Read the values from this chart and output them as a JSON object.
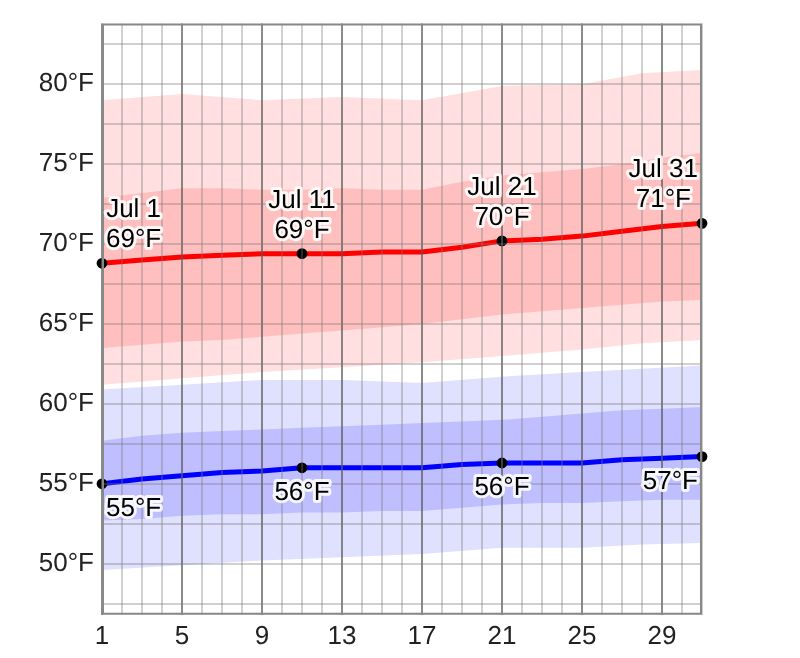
{
  "chart_data": {
    "type": "line",
    "xlim": [
      1,
      31
    ],
    "ylim": [
      46.8,
      83.8
    ],
    "xticks": [
      1,
      {
        "value": 2,
        "label": null
      },
      {
        "value": 3,
        "label": null
      },
      {
        "value": 4,
        "label": null
      },
      5,
      {
        "value": 6,
        "label": null
      },
      {
        "value": 7,
        "label": null
      },
      {
        "value": 8,
        "label": null
      },
      9,
      {
        "value": 10,
        "label": null
      },
      {
        "value": 11,
        "label": null
      },
      {
        "value": 12,
        "label": null
      },
      13,
      {
        "value": 14,
        "label": null
      },
      {
        "value": 15,
        "label": null
      },
      {
        "value": 16,
        "label": null
      },
      17,
      {
        "value": 18,
        "label": null
      },
      {
        "value": 19,
        "label": null
      },
      {
        "value": 20,
        "label": null
      },
      21,
      {
        "value": 22,
        "label": null
      },
      {
        "value": 23,
        "label": null
      },
      {
        "value": 24,
        "label": null
      },
      25,
      {
        "value": 26,
        "label": null
      },
      {
        "value": 27,
        "label": null
      },
      {
        "value": 28,
        "label": null
      },
      29,
      {
        "value": 30,
        "label": null
      },
      {
        "value": 31,
        "label": null
      }
    ],
    "yticks": [
      {
        "value": 47.5,
        "label": null
      },
      {
        "value": 50,
        "label": "50°F"
      },
      {
        "value": 52.5,
        "label": null
      },
      {
        "value": 55,
        "label": "55°F"
      },
      {
        "value": 57.5,
        "label": null
      },
      {
        "value": 60,
        "label": "60°F"
      },
      {
        "value": 62.5,
        "label": null
      },
      {
        "value": 65,
        "label": "65°F"
      },
      {
        "value": 67.5,
        "label": null
      },
      {
        "value": 70,
        "label": "70°F"
      },
      {
        "value": 72.5,
        "label": null
      },
      {
        "value": 75,
        "label": "75°F"
      },
      {
        "value": 77.5,
        "label": null
      },
      {
        "value": 80,
        "label": "80°F"
      },
      {
        "value": 82.5,
        "label": null
      }
    ],
    "grid": true,
    "legend": false,
    "series": [
      {
        "type": "line",
        "color": "#ffdfdf",
        "x": [
          1,
          5,
          9,
          13,
          17,
          21,
          25,
          28,
          31
        ],
        "values": [
          null,
          null,
          null,
          null,
          null,
          null,
          null,
          null,
          null
        ],
        "upper": [
          79.0,
          79.4,
          79.0,
          79.2,
          79.0,
          79.9,
          80.0,
          80.7,
          80.9
        ],
        "lower": [
          61.2,
          61.6,
          62.0,
          62.3,
          62.6,
          63.0,
          63.4,
          63.8,
          64.0
        ]
      },
      {
        "type": "line",
        "color": "#e0e0ff",
        "x": [
          1,
          5,
          9,
          13,
          17,
          21,
          25,
          28,
          31
        ],
        "values": [
          null,
          null,
          null,
          null,
          null,
          null,
          null,
          null,
          null
        ],
        "upper": [
          60.9,
          61.2,
          61.5,
          61.5,
          61.3,
          61.7,
          62.0,
          62.2,
          62.4
        ],
        "lower": [
          49.6,
          49.9,
          50.2,
          50.4,
          50.6,
          51.0,
          51.0,
          51.2,
          51.3
        ]
      },
      {
        "type": "line",
        "color": "#ff0000",
        "x": [
          1,
          3,
          5,
          7,
          9,
          11,
          13,
          15,
          17,
          19,
          21,
          23,
          25,
          27,
          29,
          31
        ],
        "values": [
          68.8,
          69.0,
          69.2,
          69.3,
          69.4,
          69.4,
          69.4,
          69.5,
          69.5,
          69.8,
          70.2,
          70.3,
          70.5,
          70.8,
          71.1,
          71.3
        ],
        "lower": [
          63.5,
          63.7,
          63.9,
          64.0,
          64.2,
          64.4,
          64.6,
          64.8,
          65.0,
          65.3,
          65.6,
          65.8,
          66.0,
          66.2,
          66.4,
          66.5
        ],
        "upper": [
          72.9,
          73.2,
          73.5,
          73.5,
          73.4,
          73.4,
          73.5,
          73.4,
          73.4,
          73.9,
          74.3,
          74.5,
          74.7,
          75.0,
          75.4,
          75.7
        ]
      },
      {
        "type": "line",
        "color": "#0000ff",
        "x": [
          1,
          3,
          5,
          7,
          9,
          11,
          13,
          15,
          17,
          19,
          21,
          23,
          25,
          27,
          29,
          31
        ],
        "values": [
          55.0,
          55.3,
          55.5,
          55.7,
          55.8,
          56.0,
          56.0,
          56.0,
          56.0,
          56.2,
          56.3,
          56.3,
          56.3,
          56.5,
          56.6,
          56.7
        ],
        "lower": [
          52.7,
          52.8,
          53.0,
          53.1,
          53.1,
          53.2,
          53.2,
          53.3,
          53.3,
          53.5,
          53.7,
          53.8,
          53.8,
          53.9,
          54.0,
          54.0
        ],
        "upper": [
          57.7,
          58.0,
          58.2,
          58.3,
          58.4,
          58.5,
          58.6,
          58.7,
          58.8,
          58.9,
          59.0,
          59.2,
          59.4,
          59.6,
          59.7,
          59.8
        ]
      },
      {
        "type": "scatter",
        "color": "#000000",
        "x": [
          1,
          11,
          21,
          31
        ],
        "values": [
          68.8,
          69.4,
          70.2,
          71.3
        ]
      },
      {
        "type": "scatter",
        "color": "#000000",
        "x": [
          1,
          11,
          21,
          31
        ],
        "values": [
          55.0,
          56.0,
          56.3,
          56.7
        ]
      }
    ],
    "annotations": [
      {
        "text": "Jul 1\n69°F",
        "x": 1,
        "y": 68.8
      },
      {
        "text": "Jul 11\n69°F",
        "x": 11,
        "y": 69.4
      },
      {
        "text": "Jul 21\n70°F",
        "x": 21,
        "y": 70.2
      },
      {
        "text": "Jul 31\n71°F",
        "x": 31,
        "y": 71.3
      },
      {
        "text": "55°F",
        "x": 1,
        "y": 55.0
      },
      {
        "text": "56°F",
        "x": 11,
        "y": 56.0
      },
      {
        "text": "56°F",
        "x": 21,
        "y": 56.3
      },
      {
        "text": "57°F",
        "x": 31,
        "y": 56.7
      }
    ]
  }
}
